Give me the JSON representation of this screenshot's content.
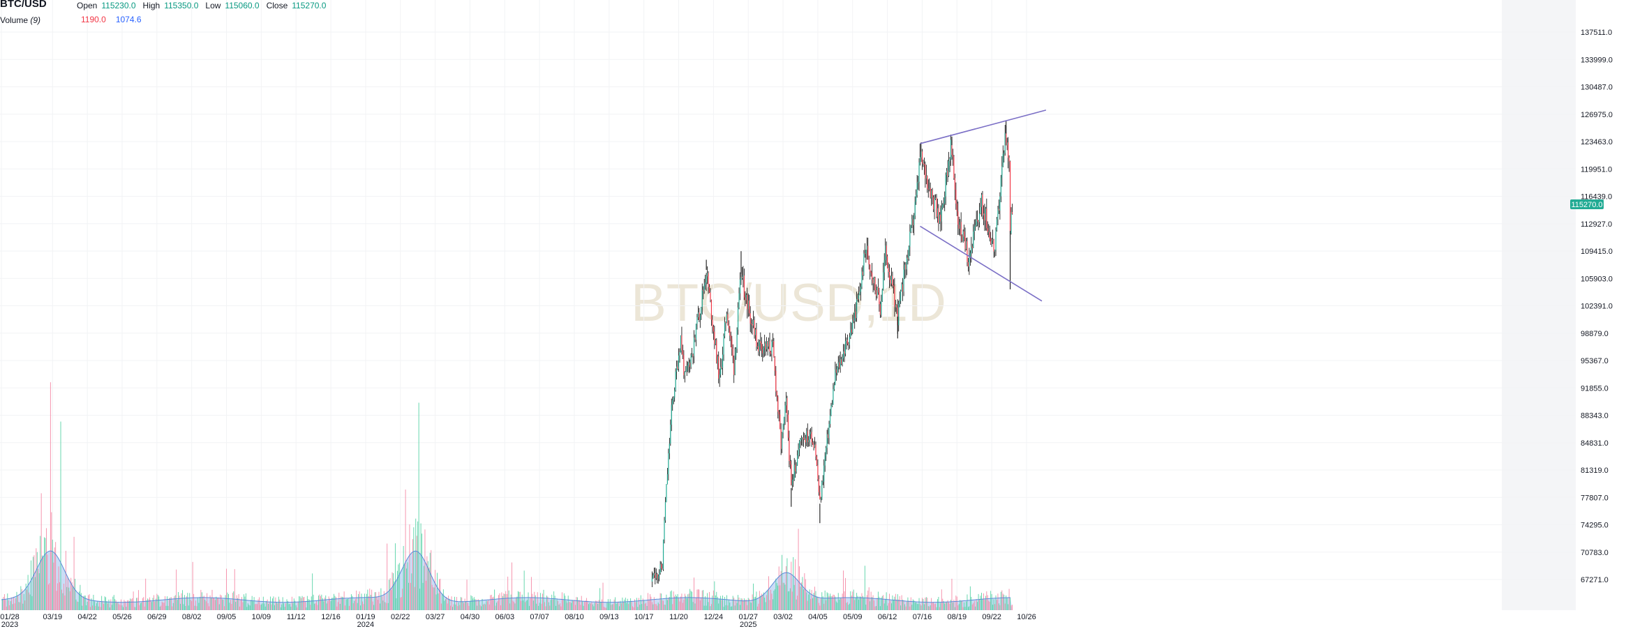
{
  "legend": {
    "symbol": "BTC/USD",
    "open_label": "Open",
    "open": "115230.0",
    "high_label": "High",
    "high": "115350.0",
    "low_label": "Low",
    "low": "115060.0",
    "close_label": "Close",
    "close": "115270.0",
    "volume_label": "Volume",
    "volume_param": "(9)",
    "volume_value": "1190.0",
    "volume_ma": "1074.6"
  },
  "watermark": "BTC/USD,1D",
  "last_price_tag": "115270.0",
  "colors": {
    "up": "#22ab94",
    "down": "#f23645",
    "wick": "#000000",
    "volume_up": "#57d3a6",
    "volume_down": "#f58aa6",
    "volume_ma_fill": "#9fc1ee",
    "volume_ma_line": "#5b8ad8",
    "trendline": "#7b6fc6",
    "price_tag": "#22ab94",
    "watermark": "#ece6d7"
  },
  "chart_data": {
    "type": "candlestick",
    "title": "BTC/USD,1D",
    "ylim": [
      63759,
      141023
    ],
    "y_ticks": [
      67271.0,
      70783.0,
      74295.0,
      77807.0,
      81319.0,
      84831.0,
      88343.0,
      91855.0,
      95367.0,
      98879.0,
      102391.0,
      105903.0,
      109415.0,
      112927.0,
      116439.0,
      119951.0,
      123463.0,
      126975.0,
      130487.0,
      133999.0,
      137511.0
    ],
    "x_ticks": [
      {
        "date": "2023-01-28",
        "label": "01/28",
        "sub": "2023"
      },
      {
        "date": "2023-03-19",
        "label": "03/19"
      },
      {
        "date": "2023-04-22",
        "label": "04/22"
      },
      {
        "date": "2023-05-26",
        "label": "05/26"
      },
      {
        "date": "2023-06-29",
        "label": "06/29"
      },
      {
        "date": "2023-08-02",
        "label": "08/02"
      },
      {
        "date": "2023-09-05",
        "label": "09/05"
      },
      {
        "date": "2023-10-09",
        "label": "10/09"
      },
      {
        "date": "2023-11-12",
        "label": "11/12"
      },
      {
        "date": "2023-12-16",
        "label": "12/16"
      },
      {
        "date": "2024-01-19",
        "label": "01/19",
        "sub": "2024"
      },
      {
        "date": "2024-02-22",
        "label": "02/22"
      },
      {
        "date": "2024-03-27",
        "label": "03/27"
      },
      {
        "date": "2024-04-30",
        "label": "04/30"
      },
      {
        "date": "2024-06-03",
        "label": "06/03"
      },
      {
        "date": "2024-07-07",
        "label": "07/07"
      },
      {
        "date": "2024-08-10",
        "label": "08/10"
      },
      {
        "date": "2024-09-13",
        "label": "09/13"
      },
      {
        "date": "2024-10-17",
        "label": "10/17"
      },
      {
        "date": "2024-11-20",
        "label": "11/20"
      },
      {
        "date": "2024-12-24",
        "label": "12/24"
      },
      {
        "date": "2025-01-27",
        "label": "01/27",
        "sub": "2025"
      },
      {
        "date": "2025-03-02",
        "label": "03/02"
      },
      {
        "date": "2025-04-05",
        "label": "04/05"
      },
      {
        "date": "2025-05-09",
        "label": "05/09"
      },
      {
        "date": "2025-06-12",
        "label": "06/12"
      },
      {
        "date": "2025-07-16",
        "label": "07/16"
      },
      {
        "date": "2025-08-19",
        "label": "08/19"
      },
      {
        "date": "2025-09-22",
        "label": "09/22"
      },
      {
        "date": "2025-10-26",
        "label": "10/26"
      }
    ],
    "price_path": [
      [
        "2024-10-25",
        67000
      ],
      [
        "2024-11-04",
        69000
      ],
      [
        "2024-11-06",
        75000
      ],
      [
        "2024-11-13",
        89000
      ],
      [
        "2024-11-22",
        98500
      ],
      [
        "2024-11-26",
        93000
      ],
      [
        "2024-12-05",
        97500
      ],
      [
        "2024-12-17",
        107000
      ],
      [
        "2024-12-30",
        92800
      ],
      [
        "2025-01-06",
        102000
      ],
      [
        "2025-01-13",
        94500
      ],
      [
        "2025-01-20",
        106500
      ],
      [
        "2025-01-27",
        102000
      ],
      [
        "2025-02-05",
        97500
      ],
      [
        "2025-02-20",
        97000
      ],
      [
        "2025-02-28",
        84500
      ],
      [
        "2025-03-05",
        90000
      ],
      [
        "2025-03-10",
        79000
      ],
      [
        "2025-03-20",
        86000
      ],
      [
        "2025-04-02",
        85000
      ],
      [
        "2025-04-07",
        77000
      ],
      [
        "2025-04-12",
        83000
      ],
      [
        "2025-04-22",
        93500
      ],
      [
        "2025-05-08",
        99500
      ],
      [
        "2025-05-15",
        103500
      ],
      [
        "2025-05-22",
        110000
      ],
      [
        "2025-06-05",
        102000
      ],
      [
        "2025-06-10",
        109500
      ],
      [
        "2025-06-22",
        101000
      ],
      [
        "2025-06-30",
        107500
      ],
      [
        "2025-07-10",
        116000
      ],
      [
        "2025-07-14",
        121500
      ],
      [
        "2025-07-24",
        117500
      ],
      [
        "2025-08-02",
        113000
      ],
      [
        "2025-08-13",
        123000
      ],
      [
        "2025-08-20",
        113500
      ],
      [
        "2025-08-30",
        108500
      ],
      [
        "2025-09-12",
        115500
      ],
      [
        "2025-09-25",
        109500
      ],
      [
        "2025-10-05",
        124500
      ],
      [
        "2025-10-09",
        121500
      ],
      [
        "2025-10-10",
        112000
      ],
      [
        "2025-10-12",
        115270
      ]
    ],
    "wick_extremes": [
      {
        "date": "2024-12-17",
        "high": 108300
      },
      {
        "date": "2025-01-20",
        "high": 109400
      },
      {
        "date": "2025-03-10",
        "low": 76600
      },
      {
        "date": "2025-04-07",
        "low": 74500
      },
      {
        "date": "2025-06-22",
        "low": 98200
      },
      {
        "date": "2025-07-14",
        "high": 123200
      },
      {
        "date": "2025-08-14",
        "high": 124100
      },
      {
        "date": "2025-10-06",
        "high": 126200
      },
      {
        "date": "2025-10-10",
        "low": 104500
      }
    ],
    "trendlines": [
      {
        "from": [
          "2025-07-14",
          123200
        ],
        "to": [
          "2025-11-14",
          127500
        ]
      },
      {
        "from": [
          "2025-07-14",
          112600
        ],
        "to": [
          "2025-11-10",
          103000
        ]
      }
    ],
    "volume_ma_peaks": [
      {
        "date": "2023-03-17",
        "value": 1.6
      },
      {
        "date": "2024-03-08",
        "value": 1.7
      },
      {
        "date": "2025-03-05",
        "value": 1.0
      }
    ]
  }
}
